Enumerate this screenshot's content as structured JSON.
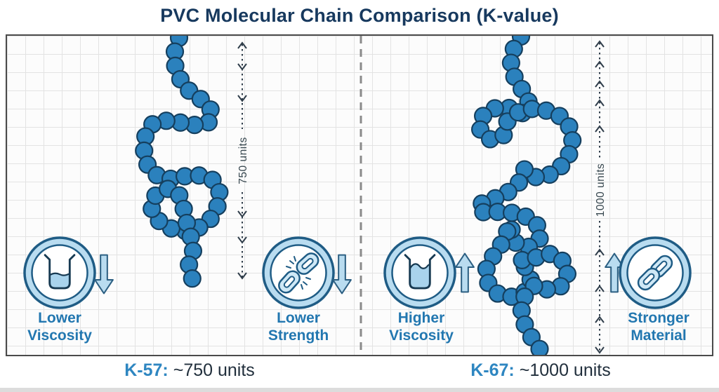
{
  "title": "PVC Molecular Chain Comparison (K-value)",
  "panels": {
    "left": {
      "dimension_label": "750 units",
      "kvalue": "K-57:",
      "units": "~750 units",
      "features": [
        {
          "line1": "Lower",
          "line2": "Viscosity",
          "trend": "down",
          "icon": "beaker-low-icon"
        },
        {
          "line1": "Lower",
          "line2": "Strength",
          "trend": "down",
          "icon": "broken-chain-icon"
        }
      ]
    },
    "right": {
      "dimension_label": "1000 units",
      "kvalue": "K-67:",
      "units": "~1000 units",
      "features": [
        {
          "line1": "Higher",
          "line2": "Viscosity",
          "trend": "up",
          "icon": "beaker-high-icon"
        },
        {
          "line1": "Stronger",
          "line2": "Material",
          "trend": "up",
          "icon": "chain-link-icon"
        }
      ]
    }
  },
  "colors": {
    "title_navy": "#17395e",
    "label_blue": "#2277b0",
    "accent_blue": "#2e86c1",
    "text_dark": "#212f3c",
    "bead_fill": "#2b81bd",
    "bead_outline": "#153f5e",
    "icon_ring_fill": "#b9dcf0",
    "icon_outline": "#1f5c85",
    "liquid_blue": "#a9d3ec",
    "grid_gray": "#e3e3e3",
    "divider_gray": "#8a8a8a"
  }
}
